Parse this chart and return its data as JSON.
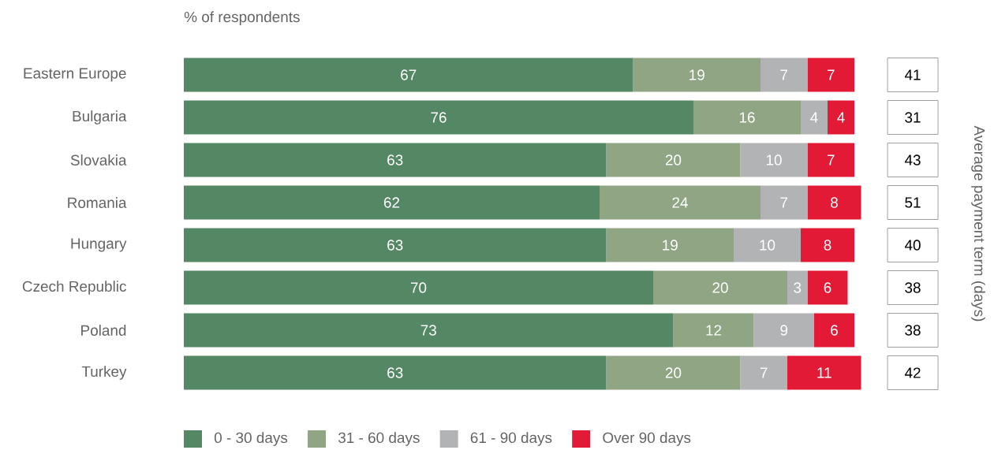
{
  "chart_data": [
    {
      "type": "bar",
      "orientation": "horizontal",
      "stacked": true,
      "data_labels": true,
      "legend": "bottom",
      "tick_labels": "y",
      "title": "% of respondents",
      "categories": [
        "Eastern Europe",
        "Bulgaria",
        "Slovakia",
        "Romania",
        "Hungary",
        "Czech Republic",
        "Poland",
        "Turkey"
      ],
      "series": [
        {
          "name": "0 - 30 days",
          "color": "#548864",
          "values": [
            67,
            76,
            63,
            62,
            63,
            70,
            73,
            63
          ]
        },
        {
          "name": "31 - 60 days",
          "color": "#8fa584",
          "values": [
            19,
            16,
            20,
            24,
            19,
            20,
            12,
            20
          ]
        },
        {
          "name": "61 - 90 days",
          "color": "#b1b3b4",
          "values": [
            7,
            4,
            10,
            7,
            10,
            3,
            9,
            7
          ]
        },
        {
          "name": "Over 90 days",
          "color": "#e31a35",
          "values": [
            7,
            4,
            7,
            8,
            8,
            6,
            6,
            11
          ]
        }
      ]
    },
    {
      "type": "other",
      "data_labels": true,
      "ylabel": "Average payment term (days)",
      "values": [
        41,
        31,
        43,
        51,
        40,
        38,
        38,
        42
      ]
    }
  ]
}
